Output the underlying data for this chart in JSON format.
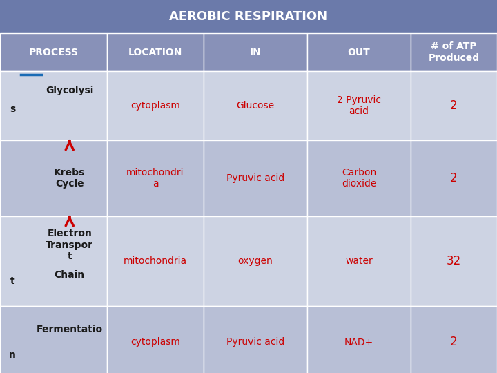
{
  "title": "AEROBIC RESPIRATION",
  "title_bg": "#6b7aaa",
  "title_color": "white",
  "header_bg": "#8891b8",
  "header_color": "white",
  "red_color": "#cc0000",
  "black_color": "#1a1a1a",
  "blue_color": "#1a6bb5",
  "columns": [
    "PROCESS",
    "LOCATION",
    "IN",
    "OUT",
    "# of ATP\nProduced"
  ],
  "rows": [
    {
      "process_top": "Glycolysi",
      "process_bot": "s",
      "location": "cytoplasm",
      "in": "Glucose",
      "out": "2 Pyruvic\nacid",
      "atp": "2",
      "bg": "#cdd3e3"
    },
    {
      "process_top": "Krebs\nCycle",
      "process_bot": "",
      "location": "mitochondri\na",
      "in": "Pyruvic acid",
      "out": "Carbon\ndioxide",
      "atp": "2",
      "bg": "#b8bfd6"
    },
    {
      "process_top": "Electron\nTranspor\nt\n\nChain",
      "process_bot": "",
      "location": "mitochondria",
      "in": "oxygen",
      "out": "water",
      "atp": "32",
      "bg": "#cdd3e3"
    },
    {
      "process_top": "Fermentatio",
      "process_bot": "n",
      "location": "cytoplasm",
      "in": "Pyruvic acid",
      "out": "NAD+",
      "atp": "2",
      "bg": "#b8bfd6"
    }
  ]
}
